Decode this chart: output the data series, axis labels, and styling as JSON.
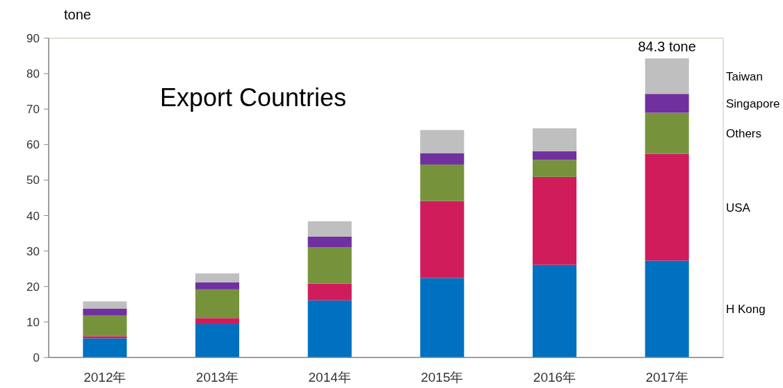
{
  "chart_data": {
    "type": "bar",
    "stacked": true,
    "title": "Export Countries",
    "ylabel": "tone",
    "categories": [
      "2012年",
      "2013年",
      "2014年",
      "2015年",
      "2016年",
      "2017年"
    ],
    "series": [
      {
        "name": "H Kong",
        "color": "#0070c0",
        "values": [
          5.4,
          9.4,
          16.1,
          22.4,
          26.1,
          27.3
        ]
      },
      {
        "name": "USA",
        "color": "#d01c5b",
        "values": [
          0.6,
          1.7,
          4.7,
          21.7,
          24.8,
          30.1
        ]
      },
      {
        "name": "Others",
        "color": "#76933c",
        "values": [
          5.8,
          8.1,
          10.2,
          10.3,
          4.8,
          11.6
        ]
      },
      {
        "name": "Singapore",
        "color": "#7030a0",
        "values": [
          2.0,
          2.0,
          3.1,
          3.2,
          2.4,
          5.3
        ]
      },
      {
        "name": "Taiwan",
        "color": "#bfbfbf",
        "values": [
          2.0,
          2.5,
          4.3,
          6.5,
          6.5,
          10.0
        ]
      }
    ],
    "annotations": [
      {
        "text": "84.3 tone",
        "x": "2017年",
        "y": 84.3
      }
    ],
    "ylim": [
      0,
      90
    ],
    "yticks": [
      0,
      10,
      20,
      30,
      40,
      50,
      60,
      70,
      80,
      90
    ],
    "grid": false
  }
}
